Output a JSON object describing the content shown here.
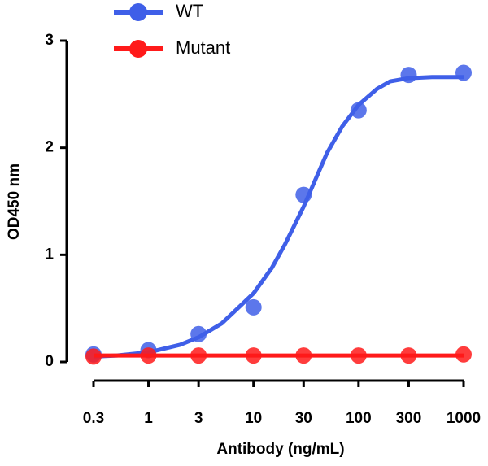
{
  "chart_data": {
    "type": "line",
    "x_label": "Antibody (ng/mL)",
    "y_label": "OD450 nm",
    "x_scale": "log",
    "xlim": [
      0.3,
      1000
    ],
    "xticks": [
      0.3,
      1,
      3,
      10,
      30,
      100,
      300,
      1000
    ],
    "ylim": [
      0,
      3
    ],
    "yticks": [
      0,
      1,
      2,
      3
    ],
    "x": [
      0.3,
      1,
      3,
      10,
      30,
      100,
      300,
      1000
    ],
    "series": [
      {
        "name": "WT",
        "color": "#3f5fe8",
        "values": [
          0.07,
          0.11,
          0.26,
          0.51,
          1.56,
          2.35,
          2.68,
          2.7
        ],
        "fit": {
          "x": [
            0.3,
            0.5,
            1,
            2,
            3,
            5,
            10,
            15,
            20,
            30,
            50,
            70,
            100,
            150,
            200,
            300,
            500,
            1000
          ],
          "values": [
            0.05,
            0.06,
            0.09,
            0.16,
            0.23,
            0.36,
            0.64,
            0.88,
            1.1,
            1.45,
            1.95,
            2.2,
            2.4,
            2.55,
            2.62,
            2.65,
            2.66,
            2.66
          ]
        }
      },
      {
        "name": "Mutant",
        "color": "#ff1a1a",
        "values": [
          0.05,
          0.06,
          0.06,
          0.06,
          0.06,
          0.06,
          0.06,
          0.07
        ],
        "fit": {
          "x": [
            0.3,
            1000
          ],
          "values": [
            0.06,
            0.06
          ]
        }
      }
    ]
  }
}
